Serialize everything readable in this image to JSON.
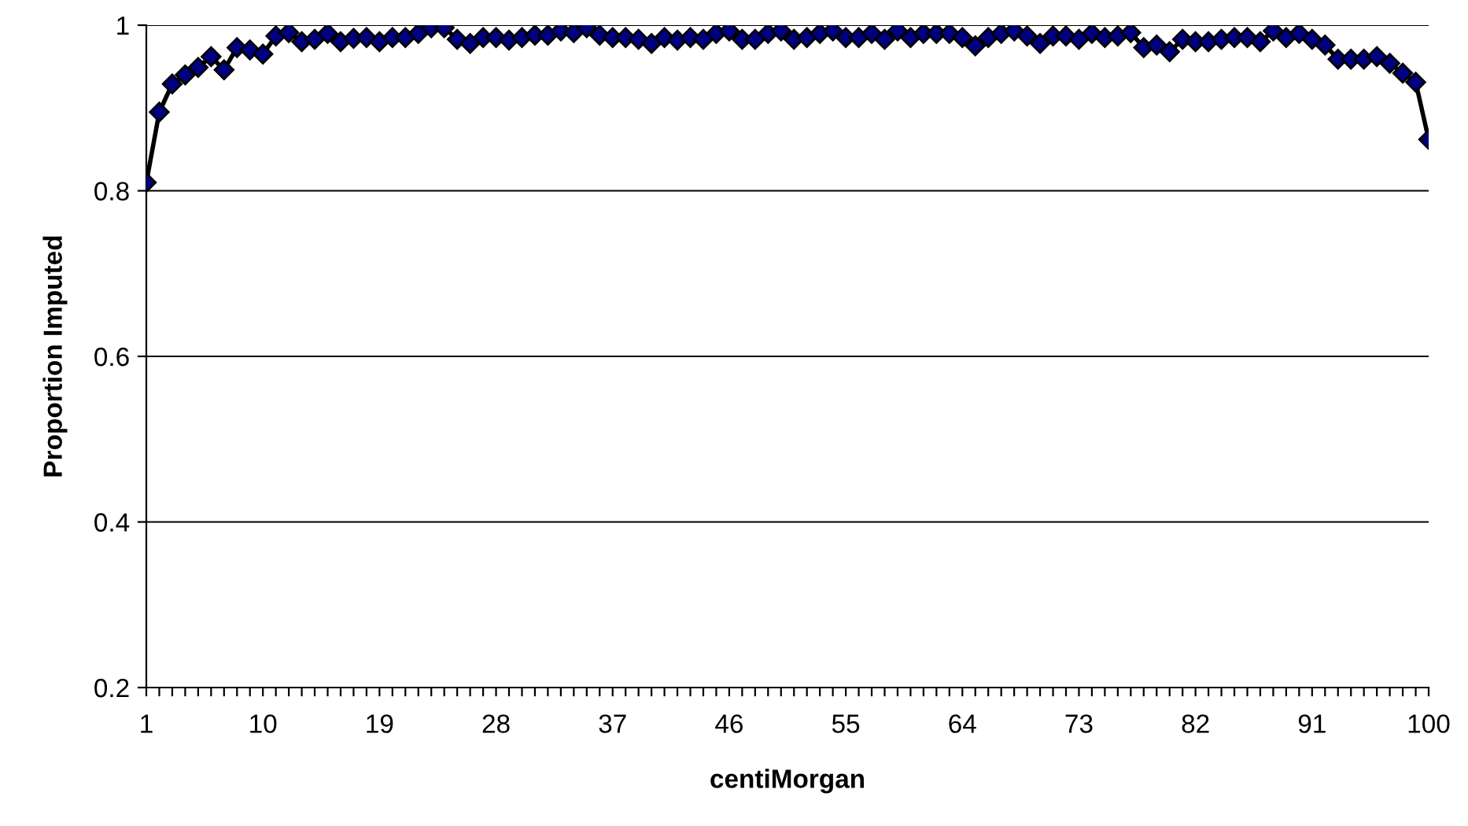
{
  "chart_data": {
    "type": "line",
    "xlabel": "centiMorgan",
    "ylabel": "Proportion Imputed",
    "categories": [
      "1",
      null,
      null,
      null,
      null,
      null,
      null,
      null,
      null,
      "10",
      null,
      null,
      null,
      null,
      null,
      null,
      null,
      null,
      "19",
      null,
      null,
      null,
      null,
      null,
      null,
      null,
      null,
      "28",
      null,
      null,
      null,
      null,
      null,
      null,
      null,
      null,
      "37",
      null,
      null,
      null,
      null,
      null,
      null,
      null,
      null,
      "46",
      null,
      null,
      null,
      null,
      null,
      null,
      null,
      null,
      "55",
      null,
      null,
      null,
      null,
      null,
      null,
      null,
      null,
      "64",
      null,
      null,
      null,
      null,
      null,
      null,
      null,
      null,
      "73",
      null,
      null,
      null,
      null,
      null,
      null,
      null,
      null,
      "82",
      null,
      null,
      null,
      null,
      null,
      null,
      null,
      null,
      "91",
      null,
      null,
      null,
      null,
      null,
      null,
      null,
      null,
      "100"
    ],
    "series": [
      {
        "color": "#000080",
        "values": [
          0.81,
          0.895,
          0.929,
          0.94,
          0.949,
          0.962,
          0.946,
          0.973,
          0.97,
          0.965,
          0.987,
          0.991,
          0.98,
          0.983,
          0.99,
          0.98,
          0.984,
          0.985,
          0.98,
          0.985,
          0.985,
          0.99,
          0.997,
          0.997,
          0.983,
          0.978,
          0.985,
          0.985,
          0.982,
          0.985,
          0.988,
          0.988,
          0.993,
          0.991,
          0.997,
          0.988,
          0.985,
          0.985,
          0.983,
          0.978,
          0.985,
          0.982,
          0.985,
          0.983,
          0.99,
          0.993,
          0.983,
          0.983,
          0.99,
          0.993,
          0.983,
          0.985,
          0.99,
          0.993,
          0.985,
          0.985,
          0.99,
          0.983,
          0.993,
          0.985,
          0.99,
          0.99,
          0.99,
          0.985,
          0.975,
          0.985,
          0.99,
          0.993,
          0.987,
          0.978,
          0.987,
          0.987,
          0.983,
          0.99,
          0.985,
          0.987,
          0.991,
          0.973,
          0.976,
          0.968,
          0.983,
          0.98,
          0.98,
          0.983,
          0.985,
          0.985,
          0.98,
          0.993,
          0.985,
          0.99,
          0.983,
          0.976,
          0.959,
          0.959,
          0.959,
          0.962,
          0.954,
          0.942,
          0.931,
          0.862
        ]
      }
    ],
    "ylim": [
      0.2,
      1
    ],
    "yticks": [
      0.2,
      0.4,
      0.6,
      0.8,
      1
    ],
    "grid": "y",
    "marker": "diamond",
    "line_style": "solid",
    "legend": false
  }
}
